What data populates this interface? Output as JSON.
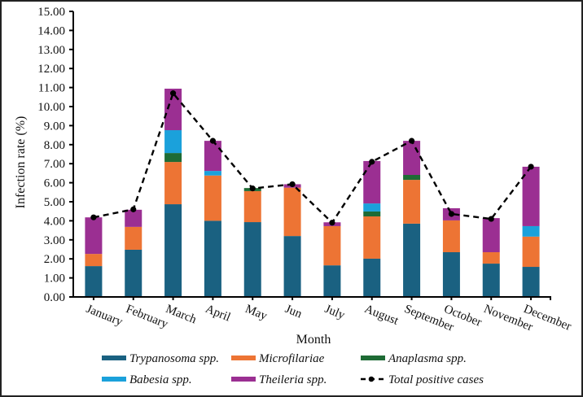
{
  "chart_data": {
    "type": "bar",
    "stacked": true,
    "title": "",
    "xlabel": "Month",
    "ylabel": "Infection rate (%)",
    "ylim": [
      0,
      15
    ],
    "ytick_step": 1,
    "ytick_labels": [
      "0.00",
      "1.00",
      "2.00",
      "3.00",
      "4.00",
      "5.00",
      "6.00",
      "7.00",
      "8.00",
      "9.00",
      "10.00",
      "11.00",
      "12.00",
      "13.00",
      "14.00",
      "15.00"
    ],
    "grid": false,
    "legend_position": "bottom",
    "categories": [
      "January",
      "February",
      "March",
      "April",
      "May",
      "Jun",
      "July",
      "August",
      "September",
      "October",
      "November",
      "December"
    ],
    "series": [
      {
        "name": "Trypanosoma spp.",
        "color": "#1A6181",
        "values": [
          1.62,
          2.48,
          4.87,
          4.0,
          3.93,
          3.2,
          1.66,
          2.01,
          3.85,
          2.35,
          1.75,
          1.58
        ]
      },
      {
        "name": "Microfilariae",
        "color": "#ED7434",
        "values": [
          0.64,
          1.2,
          2.22,
          2.38,
          1.63,
          2.54,
          2.06,
          2.22,
          2.3,
          1.67,
          0.6,
          1.59
        ]
      },
      {
        "name": "Anaplasma spp.",
        "color": "#1E6B35",
        "values": [
          0,
          0,
          0.47,
          0,
          0.16,
          0,
          0,
          0.26,
          0.26,
          0,
          0,
          0
        ]
      },
      {
        "name": "Babesia spp.",
        "color": "#1BA1DB",
        "values": [
          0,
          0,
          1.2,
          0.24,
          0,
          0,
          0,
          0.42,
          0,
          0,
          0,
          0.55
        ]
      },
      {
        "name": "Theileria spp.",
        "color": "#9B2F92",
        "values": [
          1.92,
          0.9,
          2.18,
          1.58,
          0,
          0.18,
          0.2,
          2.23,
          1.79,
          0.64,
          1.79,
          3.12
        ]
      }
    ],
    "line_series": {
      "name": "Total positive cases",
      "color": "#000000",
      "style": "dashed-with-markers",
      "values": [
        4.18,
        4.6,
        10.7,
        8.2,
        5.7,
        5.92,
        3.9,
        7.1,
        8.2,
        4.36,
        4.1,
        6.84
      ]
    },
    "legend": [
      {
        "label": "Trypanosoma spp.",
        "kind": "bar",
        "color": "#1A6181"
      },
      {
        "label": "Microfilariae",
        "kind": "bar",
        "color": "#ED7434"
      },
      {
        "label": "Anaplasma spp.",
        "kind": "bar",
        "color": "#1E6B35"
      },
      {
        "label": "Babesia spp.",
        "kind": "bar",
        "color": "#1BA1DB"
      },
      {
        "label": "Theileria spp.",
        "kind": "bar",
        "color": "#9B2F92"
      },
      {
        "label": "Total positive cases",
        "kind": "line",
        "color": "#000000"
      }
    ]
  }
}
